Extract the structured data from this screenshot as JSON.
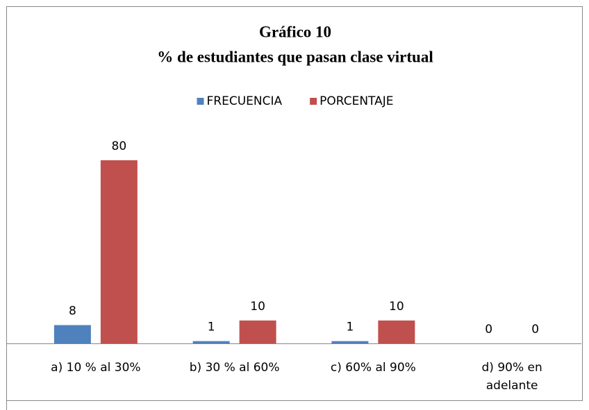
{
  "chart_data": {
    "type": "bar",
    "title": "Gráfico 10",
    "subtitle": "% de estudiantes que pasan clase virtual",
    "categories": [
      "a) 10 % al 30%",
      "b) 30 % al 60%",
      "c) 60% al 90%",
      "d) 90% en adelante"
    ],
    "series": [
      {
        "name": "FRECUENCIA",
        "color": "#4f81bd",
        "values": [
          8,
          1,
          1,
          0
        ]
      },
      {
        "name": "PORCENTAJE",
        "color": "#c0504d",
        "values": [
          80,
          10,
          10,
          0
        ]
      }
    ],
    "legend": "top"
  }
}
